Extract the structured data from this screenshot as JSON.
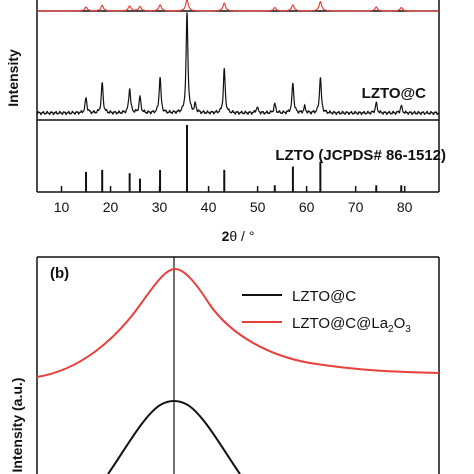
{
  "figure": {
    "panel_a": {
      "y_axis_label": "Intensity",
      "x_axis_label_main": "2",
      "x_axis_label_theta": "θ",
      "x_axis_label_unit": " / °",
      "x_ticks": [
        "10",
        "20",
        "30",
        "40",
        "50",
        "60",
        "70",
        "80"
      ],
      "label_lzto_c": "LZTO@C",
      "label_reference": "LZTO (JCPDS# 86-1512)"
    },
    "panel_b": {
      "panel_label": "(b)",
      "y_axis_label": "Intensity (a.u.)",
      "legend_1": "LZTO@C",
      "legend_2_main": "LZTO@C@La",
      "legend_2_sub1": "2",
      "legend_2_mid": "O",
      "legend_2_sub2": "3"
    }
  },
  "chart_data": [
    {
      "type": "line",
      "xlabel": "2θ / °",
      "ylabel": "Intensity",
      "xlim": [
        5,
        87
      ],
      "grid": false,
      "series": [
        {
          "name": "LZTO@C@La2O3",
          "color": "#e8403a",
          "peaks_x": [
            15.0,
            18.3,
            23.9,
            26.0,
            30.1,
            35.6,
            43.2,
            53.5,
            57.2,
            62.8,
            74.2,
            79.3
          ],
          "peaks_rel_intensity": [
            0.35,
            0.5,
            0.45,
            0.4,
            0.55,
            1.0,
            0.7,
            0.3,
            0.55,
            0.85,
            0.35,
            0.3
          ]
        },
        {
          "name": "LZTO@C",
          "color": "#111111",
          "peaks_x": [
            15.0,
            18.3,
            23.9,
            26.0,
            30.1,
            35.6,
            37.3,
            43.2,
            49.9,
            53.5,
            57.2,
            59.6,
            62.8,
            74.2,
            79.3
          ],
          "peaks_rel_intensity": [
            0.15,
            0.3,
            0.25,
            0.16,
            0.36,
            1.0,
            0.08,
            0.44,
            0.06,
            0.09,
            0.3,
            0.06,
            0.36,
            0.1,
            0.07
          ]
        },
        {
          "name": "LZTO (JCPDS# 86-1512)",
          "type": "stick",
          "color": "#111111",
          "x": [
            15.0,
            18.3,
            23.9,
            26.0,
            30.1,
            35.6,
            43.2,
            53.5,
            57.2,
            62.8,
            74.2,
            79.3
          ],
          "rel_intensity": [
            0.3,
            0.33,
            0.28,
            0.2,
            0.33,
            1.0,
            0.33,
            0.1,
            0.38,
            0.45,
            0.1,
            0.1
          ]
        }
      ]
    },
    {
      "type": "line",
      "ylabel": "Intensity (a.u.)",
      "grid": false,
      "legend": "top-right",
      "series": [
        {
          "name": "LZTO@C",
          "color": "#111111"
        },
        {
          "name": "LZTO@C@La2O3",
          "color": "#e8403a"
        }
      ]
    }
  ]
}
